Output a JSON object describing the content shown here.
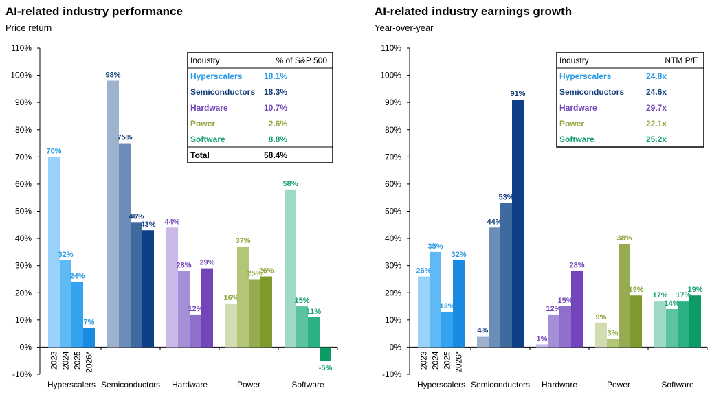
{
  "chart_data": [
    {
      "type": "bar",
      "title": "AI-related industry performance",
      "subtitle": "Price return",
      "categories": [
        "Hyperscalers",
        "Semiconductors",
        "Hardware",
        "Power",
        "Software"
      ],
      "years": [
        "2023",
        "2024",
        "2025",
        "2026*"
      ],
      "ylim": [
        -10,
        110
      ],
      "yticks": [
        "-10%",
        "0%",
        "10%",
        "20%",
        "30%",
        "40%",
        "50%",
        "60%",
        "70%",
        "80%",
        "90%",
        "100%",
        "110%"
      ],
      "series_values": [
        {
          "category": "Hyperscalers",
          "values": [
            70,
            32,
            24,
            7
          ],
          "labels": [
            "70%",
            "32%",
            "24%",
            "7%"
          ]
        },
        {
          "category": "Semiconductors",
          "values": [
            98,
            75,
            46,
            43
          ],
          "labels": [
            "98%",
            "75%",
            "46%",
            "43%"
          ]
        },
        {
          "category": "Hardware",
          "values": [
            44,
            28,
            12,
            29
          ],
          "labels": [
            "44%",
            "28%",
            "12%",
            "29%"
          ]
        },
        {
          "category": "Power",
          "values": [
            16,
            37,
            25,
            26
          ],
          "labels": [
            "16%",
            "37%",
            "25%",
            "26%"
          ]
        },
        {
          "category": "Software",
          "values": [
            58,
            15,
            11,
            -5
          ],
          "labels": [
            "58%",
            "15%",
            "11%",
            "-5%"
          ]
        }
      ],
      "table": {
        "headers": [
          "Industry",
          "% of S&P 500"
        ],
        "rows": [
          {
            "name": "Hyperscalers",
            "value": "18.1%"
          },
          {
            "name": "Semiconductors",
            "value": "18.3%"
          },
          {
            "name": "Hardware",
            "value": "10.7%"
          },
          {
            "name": "Power",
            "value": "2.6%"
          },
          {
            "name": "Software",
            "value": "8.8%"
          }
        ],
        "total": {
          "name": "Total",
          "value": "58.4%"
        }
      },
      "grid": false
    },
    {
      "type": "bar",
      "title": "AI-related industry earnings growth",
      "subtitle": "Year-over-year",
      "categories": [
        "Hyperscalers",
        "Semiconductors",
        "Hardware",
        "Power",
        "Software"
      ],
      "years": [
        "2023",
        "2024",
        "2025",
        "2026*"
      ],
      "ylim": [
        -10,
        110
      ],
      "yticks": [
        "-10%",
        "0%",
        "10%",
        "20%",
        "30%",
        "40%",
        "50%",
        "60%",
        "70%",
        "80%",
        "90%",
        "100%",
        "110%"
      ],
      "series_values": [
        {
          "category": "Hyperscalers",
          "values": [
            26,
            35,
            13,
            32
          ],
          "labels": [
            "26%",
            "35%",
            "13%",
            "32%"
          ]
        },
        {
          "category": "Semiconductors",
          "values": [
            4,
            44,
            53,
            91
          ],
          "labels": [
            "4%",
            "44%",
            "53%",
            "91%"
          ]
        },
        {
          "category": "Hardware",
          "values": [
            1,
            12,
            15,
            28
          ],
          "labels": [
            "1%",
            "12%",
            "15%",
            "28%"
          ]
        },
        {
          "category": "Power",
          "values": [
            9,
            3,
            38,
            19
          ],
          "labels": [
            "9%",
            "3%",
            "38%",
            "19%"
          ]
        },
        {
          "category": "Software",
          "values": [
            17,
            14,
            17,
            19
          ],
          "labels": [
            "17%",
            "14%",
            "17%",
            "19%"
          ]
        }
      ],
      "table": {
        "headers": [
          "Industry",
          "NTM P/E"
        ],
        "rows": [
          {
            "name": "Hyperscalers",
            "value": "24.8x"
          },
          {
            "name": "Semiconductors",
            "value": "24.6x"
          },
          {
            "name": "Hardware",
            "value": "29.7x"
          },
          {
            "name": "Power",
            "value": "22.1x"
          },
          {
            "name": "Software",
            "value": "25.2x"
          }
        ]
      },
      "grid": false
    }
  ],
  "colors": {
    "Hyperscalers": [
      "#99d3fb",
      "#5fb9f5",
      "#33a2ef",
      "#1a8ae3"
    ],
    "Semiconductors": [
      "#9db2cc",
      "#6b8db8",
      "#3e6aa0",
      "#0f3f86"
    ],
    "Hardware": [
      "#c9b8e8",
      "#a58fd6",
      "#8e6fcc",
      "#7345bb"
    ],
    "Power": [
      "#d2dcb1",
      "#b3c577",
      "#97ac50",
      "#7f9a2c"
    ],
    "Software": [
      "#9ed9c5",
      "#5cc3a1",
      "#2ab185",
      "#0c9a65"
    ],
    "label_colors": {
      "Hyperscalers": "#2a9ae6",
      "Semiconductors": "#143f7a",
      "Hardware": "#7345bb",
      "Power": "#8ea63b",
      "Software": "#12a070"
    }
  }
}
